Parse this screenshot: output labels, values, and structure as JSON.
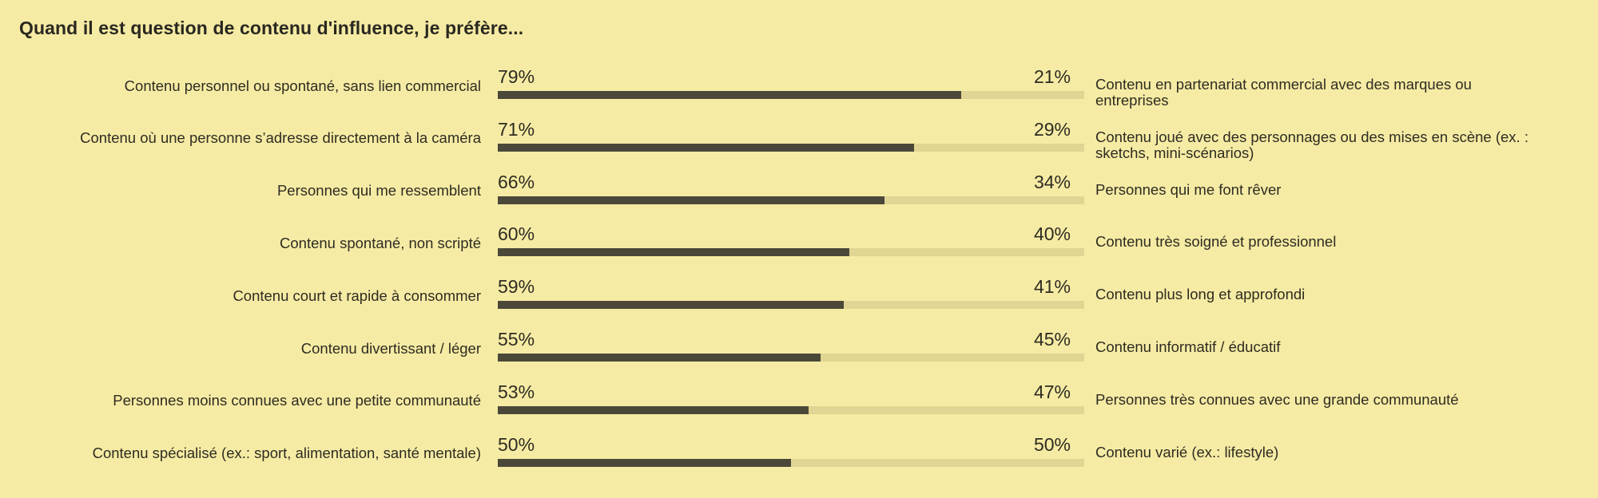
{
  "chart_data": {
    "type": "bar",
    "subtype": "stacked-100-percent-diverging",
    "title": "Quand il est question de contenu d'influence, je préfère...",
    "xlim": [
      0,
      100
    ],
    "colors": {
      "left": "#4b483a",
      "right": "#e0d592",
      "background": "#f6eba4"
    },
    "rows": [
      {
        "left_label": "Contenu personnel ou spontané, sans lien commercial",
        "left_value": 79,
        "left_text": "79%",
        "right_label": "Contenu en partenariat commercial avec des marques ou entreprises",
        "right_value": 21,
        "right_text": "21%"
      },
      {
        "left_label": "Contenu où une personne s’adresse directement à la caméra",
        "left_value": 71,
        "left_text": "71%",
        "right_label": "Contenu joué avec des personnages ou des mises en scène (ex. : sketchs, mini-scénarios)",
        "right_value": 29,
        "right_text": "29%"
      },
      {
        "left_label": "Personnes qui me ressemblent",
        "left_value": 66,
        "left_text": "66%",
        "right_label": "Personnes qui me font rêver",
        "right_value": 34,
        "right_text": "34%"
      },
      {
        "left_label": "Contenu spontané, non scripté",
        "left_value": 60,
        "left_text": "60%",
        "right_label": "Contenu très soigné et professionnel",
        "right_value": 40,
        "right_text": "40%"
      },
      {
        "left_label": "Contenu court et rapide à consommer",
        "left_value": 59,
        "left_text": "59%",
        "right_label": "Contenu plus long et approfondi",
        "right_value": 41,
        "right_text": "41%"
      },
      {
        "left_label": "Contenu divertissant / léger",
        "left_value": 55,
        "left_text": "55%",
        "right_label": "Contenu informatif / éducatif",
        "right_value": 45,
        "right_text": "45%"
      },
      {
        "left_label": "Personnes moins connues avec une petite communauté",
        "left_value": 53,
        "left_text": "53%",
        "right_label": "Personnes très connues avec une grande communauté",
        "right_value": 47,
        "right_text": "47%"
      },
      {
        "left_label": "Contenu spécialisé (ex.: sport, alimentation, santé mentale)",
        "left_value": 50,
        "left_text": "50%",
        "right_label": "Contenu varié (ex.: lifestyle)",
        "right_value": 50,
        "right_text": "50%"
      }
    ]
  }
}
